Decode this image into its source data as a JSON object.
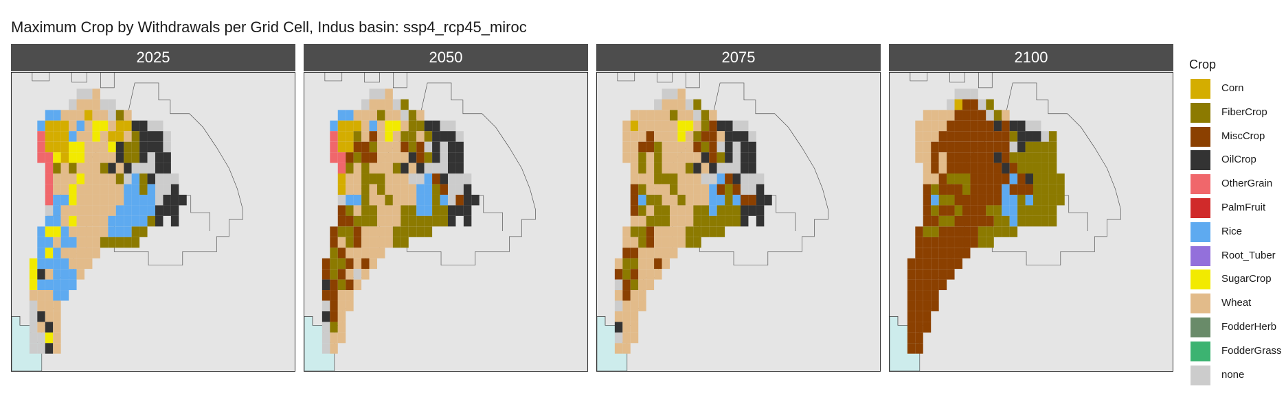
{
  "title": "Maximum Crop by Withdrawals per Grid Cell, Indus basin: ssp4_rcp45_miroc",
  "legend": {
    "title": "Crop",
    "items": [
      {
        "label": "Corn",
        "color": "#d4ad00"
      },
      {
        "label": "FiberCrop",
        "color": "#8c7a00"
      },
      {
        "label": "MiscCrop",
        "color": "#8b4000"
      },
      {
        "label": "OilCrop",
        "color": "#333333"
      },
      {
        "label": "OtherGrain",
        "color": "#f0676b"
      },
      {
        "label": "PalmFruit",
        "color": "#d02a2a"
      },
      {
        "label": "Rice",
        "color": "#5eaaf0"
      },
      {
        "label": "Root_Tuber",
        "color": "#9370db"
      },
      {
        "label": "SugarCrop",
        "color": "#f2ea00"
      },
      {
        "label": "Wheat",
        "color": "#e2bb8a"
      },
      {
        "label": "FodderHerb",
        "color": "#698b69"
      },
      {
        "label": "FodderGrass",
        "color": "#3cb371"
      },
      {
        "label": "none",
        "color": "#cccccc"
      }
    ]
  },
  "panels": [
    {
      "label": "2025",
      "rows": [
        "..................",
        "......NNW.........",
        ".....NWWWNN.......",
        "..RRWWWCWWNFW.....",
        ".RCCCWRWYYWCCOONN.",
        ".GCCCRWWYWCCWFOOON",
        ".GCCCYYWWWYOFFOOON",
        ".GGYCYYWWWWOFFONOO",
        "..GFWFWWWFOWONNNOO",
        "..GWWWYWWWWFNRFONNN",
        "..GWWYWWWWWWRRFRNNO",
        "..GRRYWWWWWWRRRRNOOO",
        "..NRWWWWWWWRRRRROOO",
        "..RRWYWWWWRRRRRFO.O",
        ".RYYRWWWWWRRRFF....",
        ".RRWRRWWWFFFFF.....",
        ".RYRWWWWW..........",
        "YRRRRWWW...........",
        "YOWRRRW............",
        "YRRRRR.............",
        "WWWRR..............",
        "NWWW...............",
        "NOWW...............",
        "NWOW...............",
        "NNYW...............",
        "NNOW..............."
      ]
    },
    {
      "label": "2050",
      "rows": [
        "..................",
        "......NNW.........",
        ".....NWWWNF.......",
        "..RRWWWFWWNFW.....",
        ".RCCCWRWYYWFFOONN.",
        ".GCCFWMWYWFFWFOOON",
        ".GCCMMFWWWMFMNONOO",
        ".GGMFMMWWWWOMFONOO",
        "..GFWFWWWFOWONNNOO",
        "..CWWFFFWWWNNRMONNN",
        "..CWWFWFWWWWRRFMNNO",
        "..NRRFWWFWWWRRFRNMOO",
        "..MFWFFWWWFFRRFFOOO",
        "..MMFFFWWWFFFFFFO.O",
        ".MFFMWWWWFFFFF.....",
        ".MWFMWWWWFF........",
        ".FMWWWWW...........",
        "MFFMWMW............",
        "MFMWNW.............",
        "OMFMW..............",
        "MMWW...............",
        "NMWW...............",
        "OMW................",
        "NFW................",
        "NWW................",
        "NW................."
      ]
    },
    {
      "label": "2075",
      "rows": [
        "..................",
        "......NNW.........",
        ".....NWWWNF.......",
        "..WWWWWFWWNFW.....",
        ".WCWWWWWYYWFMOONN.",
        ".WWWMWWWYWFMMWOOON",
        ".WWMMFWWWWMFMNONOO",
        ".WWFWFWWWWWOMFONOO",
        "..WFWFWWWFOWONNNOO",
        "..WWWFFFWWWNNRMONNN",
        "..MFWWWFWWWWRMFMNNO",
        "..MRFFWWFWWWRRFRMMOO",
        "..MFWFFWWWFFRFFFOOO",
        "..WWFFFWWWFFFFFFO.O",
        ".WFFMWWWWFFFFF.....",
        ".WWFMWWWWFF........",
        ".MMWWWWW...........",
        "WFFWWMW............",
        "MFMWWW.............",
        "NMFWW..............",
        "WMWW...............",
        "NWWW...............",
        "WWW................",
        "OWW................",
        "NWW................",
        "WW................."
      ]
    },
    {
      "label": "2100",
      "rows": [
        "..................",
        "......NNN.........",
        ".....NCMMNF.......",
        "..WWWWMMMMNFW.....",
        ".WWWWMMMMMMOMOONN.",
        ".WWWMMMMMMMMMFOOONF",
        ".WWMMMMMMMMMMNOFFFF",
        ".WWMWMMMMMMOMFFFFFF",
        "..WMWMMMMMMMOMFFFFF",
        "..WWMFFFMMMMMRMOFFFF",
        "..MFMMMFMMMMRMMMFFFF",
        "..MRFFMMMMMMRRFRFFFF",
        "..MFMMFMMMFFRRFFFFF",
        "..MMFFMMMMMFFRFFFFF",
        ".MFFMMMMMFFFFF.....",
        ".MMMMMMMMFF........",
        ".MMMMMMM...........",
        "MMMMMMM............",
        "MMMMMM.............",
        "MMMMM..............",
        "MMMM...............",
        "MMMM...............",
        "MMM................",
        "MMM................",
        "MM.................",
        "MM................."
      ]
    }
  ]
}
